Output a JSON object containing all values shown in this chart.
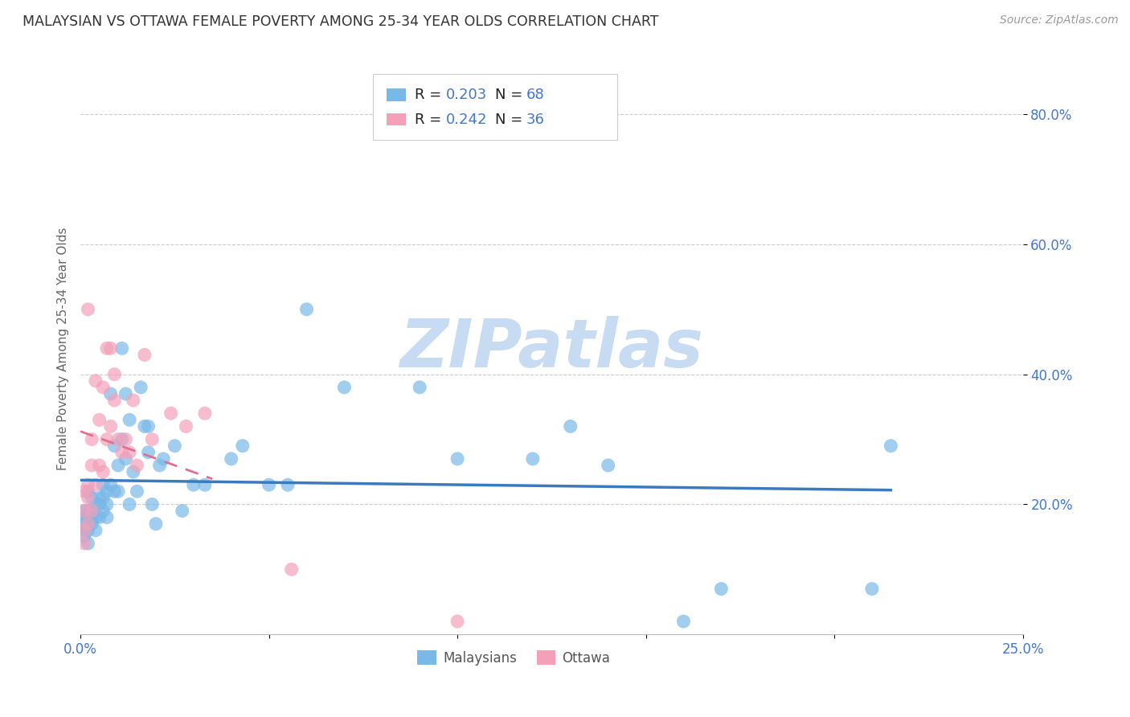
{
  "title": "MALAYSIAN VS OTTAWA FEMALE POVERTY AMONG 25-34 YEAR OLDS CORRELATION CHART",
  "source": "Source: ZipAtlas.com",
  "ylabel": "Female Poverty Among 25-34 Year Olds",
  "xlim": [
    0.0,
    0.25
  ],
  "ylim": [
    0.0,
    0.88
  ],
  "grid_color": "#cccccc",
  "background_color": "#ffffff",
  "malaysians_color": "#7ab8e8",
  "ottawa_color": "#f4a0b8",
  "malaysians_label": "Malaysians",
  "ottawa_label": "Ottawa",
  "trend_blue_color": "#3a7abf",
  "trend_pink_color": "#e07090",
  "R_malaysians": 0.203,
  "N_malaysians": 68,
  "R_ottawa": 0.242,
  "N_ottawa": 36,
  "watermark": "ZIPatlas",
  "watermark_color_r": 0.78,
  "watermark_color_g": 0.86,
  "watermark_color_b": 0.95,
  "legend_N_color": "#4477cc",
  "mal_x": [
    0.001,
    0.001,
    0.001,
    0.001,
    0.001,
    0.002,
    0.002,
    0.002,
    0.002,
    0.002,
    0.002,
    0.003,
    0.003,
    0.003,
    0.003,
    0.004,
    0.004,
    0.004,
    0.005,
    0.005,
    0.005,
    0.006,
    0.006,
    0.006,
    0.007,
    0.007,
    0.007,
    0.008,
    0.008,
    0.009,
    0.009,
    0.01,
    0.01,
    0.011,
    0.011,
    0.012,
    0.012,
    0.013,
    0.013,
    0.014,
    0.015,
    0.016,
    0.017,
    0.018,
    0.018,
    0.019,
    0.02,
    0.021,
    0.022,
    0.025,
    0.027,
    0.03,
    0.033,
    0.04,
    0.043,
    0.05,
    0.055,
    0.06,
    0.07,
    0.09,
    0.1,
    0.12,
    0.13,
    0.14,
    0.16,
    0.17,
    0.21,
    0.215
  ],
  "mal_y": [
    0.15,
    0.16,
    0.17,
    0.18,
    0.19,
    0.14,
    0.16,
    0.17,
    0.18,
    0.19,
    0.22,
    0.17,
    0.18,
    0.19,
    0.21,
    0.16,
    0.18,
    0.2,
    0.18,
    0.2,
    0.21,
    0.19,
    0.21,
    0.23,
    0.18,
    0.2,
    0.22,
    0.23,
    0.37,
    0.22,
    0.29,
    0.22,
    0.26,
    0.3,
    0.44,
    0.27,
    0.37,
    0.33,
    0.2,
    0.25,
    0.22,
    0.38,
    0.32,
    0.28,
    0.32,
    0.2,
    0.17,
    0.26,
    0.27,
    0.29,
    0.19,
    0.23,
    0.23,
    0.27,
    0.29,
    0.23,
    0.23,
    0.5,
    0.38,
    0.38,
    0.27,
    0.27,
    0.32,
    0.26,
    0.02,
    0.07,
    0.07,
    0.29
  ],
  "ott_x": [
    0.001,
    0.001,
    0.001,
    0.001,
    0.002,
    0.002,
    0.002,
    0.002,
    0.003,
    0.003,
    0.003,
    0.004,
    0.004,
    0.005,
    0.005,
    0.006,
    0.006,
    0.007,
    0.007,
    0.008,
    0.008,
    0.009,
    0.009,
    0.01,
    0.011,
    0.012,
    0.013,
    0.014,
    0.015,
    0.017,
    0.019,
    0.024,
    0.028,
    0.033,
    0.056,
    0.1
  ],
  "ott_y": [
    0.14,
    0.16,
    0.19,
    0.22,
    0.17,
    0.21,
    0.23,
    0.5,
    0.19,
    0.26,
    0.3,
    0.23,
    0.39,
    0.26,
    0.33,
    0.25,
    0.38,
    0.3,
    0.44,
    0.32,
    0.44,
    0.36,
    0.4,
    0.3,
    0.28,
    0.3,
    0.28,
    0.36,
    0.26,
    0.43,
    0.3,
    0.34,
    0.32,
    0.34,
    0.1,
    0.02
  ]
}
